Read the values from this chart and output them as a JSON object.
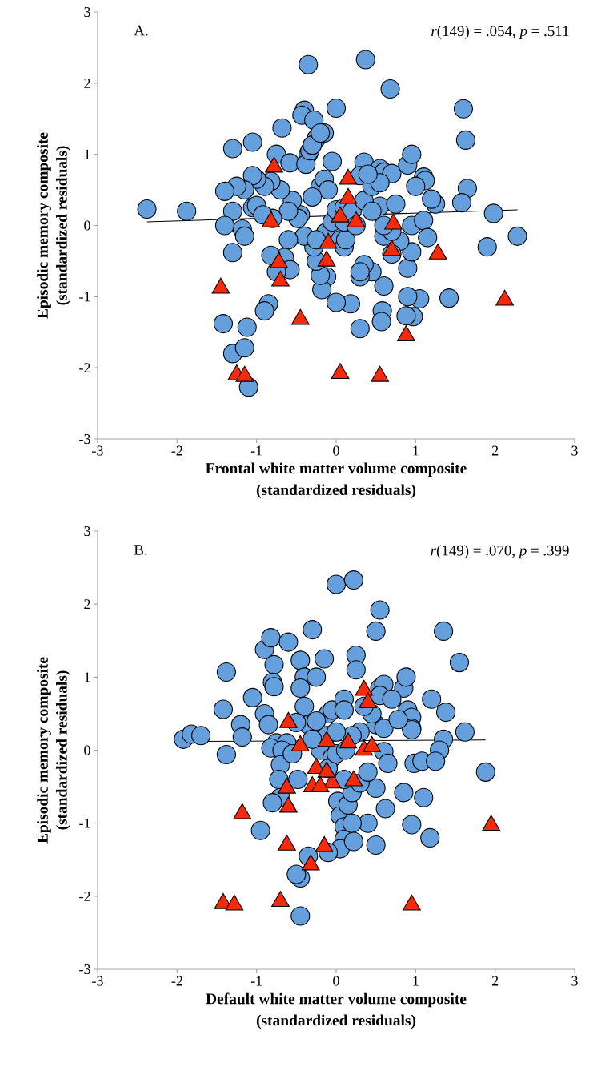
{
  "chart_data": [
    {
      "type": "scatter",
      "xlabel": "Frontal white matter volume composite (standardized residuals)",
      "ylabel": "Episodic memory composite (standardized residuals)",
      "xlim": [
        -3,
        3
      ],
      "ylim": [
        -3,
        3
      ],
      "xticks": [
        -3,
        -2,
        -1,
        0,
        1,
        2,
        3
      ],
      "yticks": [
        -3,
        -2,
        -1,
        0,
        1,
        2,
        3
      ],
      "annotations": [
        "A.",
        "*r*(149) = .054, *p* = .511"
      ],
      "series": [
        {
          "type": "scatter",
          "marker": "circle",
          "color": "#659fdc",
          "x": [
            -2.38,
            -1.88,
            -0.35,
            0.37,
            0.68,
            0.0,
            -0.4,
            -0.43,
            -0.68,
            -0.28,
            -0.25,
            -1.3,
            -1.05,
            -0.75,
            -0.58,
            -0.35,
            -0.38,
            -0.33,
            -0.3,
            -0.15,
            -0.2,
            -0.05,
            0.35,
            0.3,
            0.55,
            0.6,
            0.7,
            0.9,
            0.95,
            1.1,
            1.12,
            1.0,
            1.25,
            1.2,
            1.6,
            1.63,
            1.65,
            1.58,
            1.98,
            2.28,
            1.9,
            1.42,
            1.05,
            0.97,
            0.9,
            0.88,
            0.9,
            0.95,
            0.95,
            1.1,
            1.15,
            0.8,
            0.7,
            0.6,
            0.55,
            0.6,
            0.58,
            0.57,
            0.3,
            0.18,
            0.45,
            0.35,
            0.3,
            0.3,
            0.0,
            -0.12,
            -0.18,
            -0.2,
            -0.25,
            -0.28,
            -0.13,
            0.05,
            0.1,
            0.12,
            -0.05,
            0.0,
            0.1,
            0.1,
            0.2,
            0.35,
            0.45,
            0.55,
            0.75,
            0.7,
            -0.2,
            -0.15,
            -0.1,
            -0.3,
            -0.45,
            -0.48,
            -0.55,
            -0.6,
            -0.4,
            -0.6,
            -0.65,
            -0.58,
            -0.75,
            -0.82,
            -0.85,
            -0.9,
            -0.8,
            -0.7,
            -0.82,
            -0.9,
            -1.0,
            -1.05,
            -1.15,
            -1.25,
            -1.4,
            -1.3,
            -1.18,
            -1.15,
            -1.4,
            -1.05,
            -1.3,
            -1.42,
            -1.3,
            -1.15,
            -1.12,
            -1.1,
            -1.0,
            -0.92,
            -0.25,
            0.25,
            0.45,
            0.4,
            0.6
          ],
          "values": [
            0.23,
            0.2,
            2.26,
            2.33,
            1.92,
            1.65,
            1.62,
            1.55,
            1.37,
            1.48,
            1.22,
            1.08,
            1.17,
            1.0,
            0.88,
            1.0,
            0.86,
            1.05,
            1.13,
            1.3,
            1.3,
            0.9,
            0.89,
            0.7,
            0.8,
            0.75,
            0.73,
            0.85,
            1.0,
            0.68,
            0.63,
            0.55,
            0.3,
            0.37,
            1.64,
            1.2,
            0.52,
            0.32,
            0.17,
            -0.15,
            -0.3,
            -1.02,
            -1.03,
            -1.28,
            -1.0,
            -1.27,
            -0.6,
            -0.37,
            0.0,
            0.07,
            -0.17,
            -0.22,
            -0.4,
            -0.15,
            0.27,
            -0.85,
            -1.2,
            -1.35,
            -1.45,
            -1.1,
            -0.65,
            -0.55,
            -0.72,
            -0.65,
            -1.08,
            -0.72,
            -0.9,
            -0.7,
            -0.5,
            -0.3,
            -0.1,
            -0.2,
            -0.3,
            -0.2,
            0.05,
            0.22,
            0.25,
            0.05,
            0.2,
            0.35,
            0.55,
            0.6,
            0.3,
            -0.08,
            0.55,
            0.65,
            0.5,
            0.4,
            0.15,
            0.1,
            0.35,
            0.2,
            -0.15,
            -0.2,
            -0.45,
            -0.62,
            -0.65,
            -0.42,
            -1.1,
            -1.2,
            0.1,
            0.5,
            0.62,
            0.55,
            0.65,
            0.7,
            0.5,
            0.55,
            0.48,
            0.2,
            -0.05,
            -0.15,
            0.0,
            0.25,
            -0.38,
            -1.38,
            -1.8,
            -1.72,
            -1.43,
            -2.27,
            0.28,
            0.15,
            -0.2,
            0.0,
            0.2,
            0.72,
            0.0
          ]
        },
        {
          "type": "scatter",
          "marker": "triangle",
          "color": "#f52a0a",
          "x": [
            -0.78,
            -0.82,
            -0.72,
            -0.7,
            -1.45,
            -0.45,
            -1.25,
            -1.15,
            0.05,
            0.55,
            0.88,
            1.28,
            2.12,
            0.7,
            0.72,
            0.25,
            0.05,
            0.15,
            0.15,
            -0.1,
            -0.12
          ],
          "values": [
            0.82,
            0.05,
            -0.52,
            -0.78,
            -0.88,
            -1.32,
            -2.1,
            -2.12,
            -2.08,
            -2.12,
            -1.55,
            -0.4,
            -1.05,
            -0.35,
            0.02,
            0.05,
            0.12,
            0.38,
            0.65,
            -0.25,
            -0.5
          ]
        },
        {
          "type": "line",
          "marker": "none",
          "color": "#000000",
          "x": [
            -2.38,
            2.28
          ],
          "values": [
            0.05,
            0.22
          ]
        }
      ]
    },
    {
      "type": "scatter",
      "xlabel": "Default white matter volume composite (standardized residuals)",
      "ylabel": "Episodic memory composite (standardized residuals)",
      "xlim": [
        -3,
        3
      ],
      "ylim": [
        -3,
        3
      ],
      "xticks": [
        -3,
        -2,
        -1,
        0,
        1,
        2,
        3
      ],
      "yticks": [
        -3,
        -2,
        -1,
        0,
        1,
        2,
        3
      ],
      "annotations": [
        "B.",
        "*r*(149) = .070, *p* = .399"
      ],
      "series": [
        {
          "type": "scatter",
          "marker": "circle",
          "color": "#659fdc",
          "x": [
            -1.92,
            -1.82,
            -1.7,
            -1.38,
            -1.42,
            -1.38,
            -1.05,
            -1.2,
            -1.18,
            -0.9,
            -0.82,
            -0.78,
            -0.8,
            -0.78,
            -0.9,
            -0.85,
            -0.75,
            -0.82,
            -0.6,
            -0.45,
            -0.4,
            -0.45,
            -0.4,
            -0.35,
            -0.5,
            -0.62,
            -0.68,
            -0.7,
            -0.55,
            -0.7,
            -0.8,
            -0.95,
            -0.72,
            -0.48,
            -0.3,
            -0.25,
            -0.15,
            -0.1,
            -0.12,
            -0.2,
            -0.05,
            -0.1,
            0.0,
            0.02,
            0.05,
            0.1,
            0.1,
            0.05,
            -0.1,
            -0.35,
            -0.45,
            -0.5,
            -0.45,
            0.0,
            0.22,
            0.55,
            0.5,
            0.25,
            0.25,
            0.55,
            0.6,
            0.55,
            0.85,
            0.88,
            0.9,
            0.95,
            0.95,
            1.2,
            1.35,
            1.55,
            1.38,
            1.35,
            1.3,
            1.62,
            1.88,
            0.95,
            0.98,
            1.08,
            1.25,
            1.1,
            1.18,
            0.95,
            0.85,
            0.62,
            0.5,
            0.4,
            0.5,
            0.2,
            0.15,
            0.2,
            0.1,
            0.3,
            0.4,
            0.6,
            0.65,
            0.5,
            0.45,
            0.3,
            0.2,
            0.12,
            0.0,
            -0.05,
            0.1,
            0.1,
            -0.25,
            -0.3,
            0.22,
            0.6,
            0.35,
            0.7,
            0.78
          ],
          "values": [
            0.15,
            0.22,
            0.2,
            1.07,
            0.56,
            -0.06,
            0.72,
            0.35,
            0.18,
            1.38,
            1.54,
            1.17,
            0.93,
            0.87,
            0.5,
            0.35,
            0.1,
            0.03,
            1.48,
            1.23,
            1.0,
            0.85,
            0.6,
            0.35,
            0.38,
            0.1,
            0.0,
            -0.2,
            -0.05,
            -0.65,
            -0.72,
            -1.1,
            -0.4,
            -0.4,
            1.65,
            1.0,
            1.25,
            0.5,
            0.2,
            0.0,
            -0.1,
            -0.25,
            -0.05,
            -0.7,
            -0.9,
            -1.05,
            -1.22,
            -1.35,
            -1.4,
            -1.45,
            -1.75,
            -1.7,
            -2.27,
            2.27,
            2.33,
            1.92,
            1.63,
            1.3,
            1.1,
            0.85,
            0.9,
            0.75,
            0.85,
            1.0,
            0.55,
            0.45,
            0.3,
            0.7,
            1.63,
            1.2,
            0.52,
            0.15,
            0.0,
            0.25,
            -0.3,
            0.28,
            -0.18,
            -0.15,
            -0.15,
            -0.65,
            -1.2,
            -1.02,
            -0.58,
            -0.8,
            -0.52,
            -1.0,
            -1.3,
            -1.0,
            -0.75,
            -0.58,
            -0.4,
            -0.45,
            -0.3,
            -0.02,
            -0.18,
            0.35,
            0.5,
            0.25,
            0.2,
            0.0,
            0.25,
            0.55,
            0.7,
            0.55,
            0.4,
            0.15,
            -1.25,
            0.3,
            0.6,
            0.7,
            0.42
          ]
        },
        {
          "type": "scatter",
          "marker": "triangle",
          "color": "#f52a0a",
          "x": [
            -1.42,
            -1.28,
            -0.7,
            0.95,
            1.95,
            -1.18,
            -0.6,
            -0.62,
            -0.62,
            -0.32,
            -0.15,
            -0.3,
            -0.25,
            -0.05,
            -0.12,
            0.22,
            0.35,
            0.45,
            0.35,
            0.4,
            0.15,
            -0.45,
            -0.6,
            -0.12,
            -0.2
          ],
          "values": [
            -2.1,
            -2.12,
            -2.07,
            -2.12,
            -1.03,
            -0.87,
            -0.78,
            -0.52,
            -1.3,
            -1.57,
            -1.32,
            -0.5,
            -0.25,
            -0.45,
            -0.3,
            -0.42,
            0.0,
            0.05,
            0.82,
            0.65,
            0.1,
            0.06,
            0.38,
            0.12,
            -0.5
          ]
        },
        {
          "type": "line",
          "marker": "none",
          "color": "#000000",
          "x": [
            -1.92,
            1.88
          ],
          "values": [
            0.12,
            0.14
          ]
        }
      ]
    }
  ]
}
